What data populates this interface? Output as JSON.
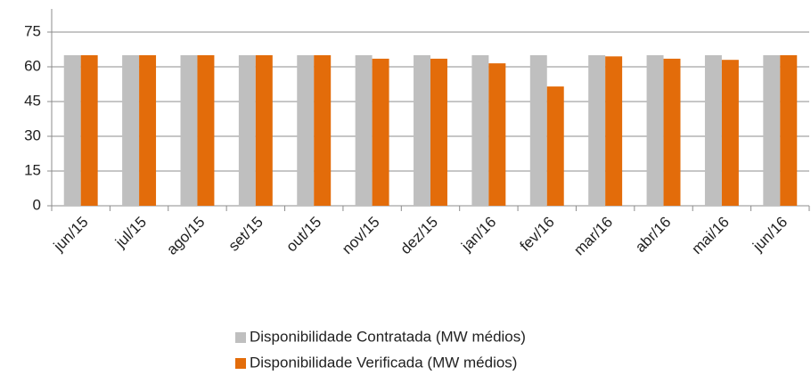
{
  "chart_data": {
    "type": "bar",
    "categories": [
      "jun/15",
      "jul/15",
      "ago/15",
      "set/15",
      "out/15",
      "nov/15",
      "dez/15",
      "jan/16",
      "fev/16",
      "mar/16",
      "abr/16",
      "mai/16",
      "jun/16"
    ],
    "series": [
      {
        "name": "Disponibilidade Contratada (MW médios)",
        "color": "#bfbfbf",
        "values": [
          65,
          65,
          65,
          65,
          65,
          65,
          65,
          65,
          65,
          65,
          65,
          65,
          65
        ]
      },
      {
        "name": "Disponibilidade Verificada (MW médios)",
        "color": "#e36c0a",
        "values": [
          65,
          65,
          65,
          65,
          65,
          63.5,
          63.5,
          61.5,
          51.5,
          64.5,
          63.5,
          63,
          65
        ]
      }
    ],
    "ylim": [
      0,
      85
    ],
    "yticks": [
      0,
      15,
      30,
      45,
      60,
      75
    ],
    "grid": true
  }
}
